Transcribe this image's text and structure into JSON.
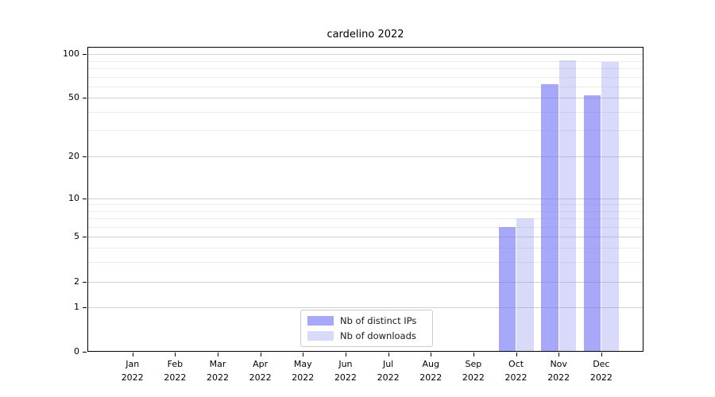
{
  "chart_data": {
    "type": "bar",
    "title": "cardelino 2022",
    "xlabel": "",
    "ylabel": "",
    "categories": [
      "Jan",
      "Feb",
      "Mar",
      "Apr",
      "May",
      "Jun",
      "Jul",
      "Aug",
      "Sep",
      "Oct",
      "Nov",
      "Dec"
    ],
    "category_year": "2022",
    "series": [
      {
        "name": "Nb of distinct IPs",
        "color": "#6e6ef7",
        "alpha": 0.6,
        "values": [
          0,
          0,
          0,
          0,
          0,
          0,
          0,
          0,
          0,
          6,
          62,
          52
        ]
      },
      {
        "name": "Nb of downloads",
        "color": "#9696ee",
        "alpha": 0.36,
        "values": [
          0,
          0,
          0,
          0,
          0,
          0,
          0,
          0,
          0,
          7,
          91,
          89
        ]
      }
    ],
    "yscale": "symlog",
    "ylim": [
      0,
      112
    ],
    "y_ticks": [
      100,
      50,
      20,
      10,
      5,
      2,
      1,
      0
    ],
    "y_minor_gridlines": [
      3,
      4,
      6,
      7,
      8,
      9,
      30,
      40,
      60,
      70,
      80,
      90
    ],
    "grid": "horizontal",
    "legend_position": "lower-center"
  },
  "colors": {
    "major_grid": "#d0d0d0",
    "minor_grid": "#ebebeb",
    "axis": "#000000",
    "text": "#1a1a1a"
  }
}
